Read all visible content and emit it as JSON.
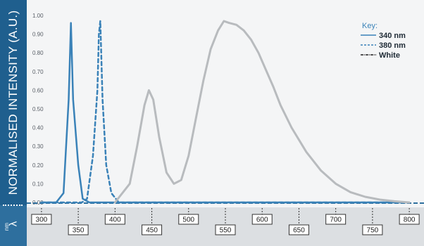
{
  "chart_data": {
    "type": "line",
    "ylabel": "NORMALISED INTENSITY (A.U.)",
    "xlabel": "λ",
    "xunit": "nm",
    "xlim": [
      280,
      820
    ],
    "ylim": [
      0,
      1.0
    ],
    "y_ticks": [
      "0.00",
      "0.10",
      "0.20",
      "0.30",
      "0.40",
      "0.50",
      "0.60",
      "0.70",
      "0.80",
      "0.90",
      "1.00"
    ],
    "x_ticks": [
      "300",
      "350",
      "400",
      "450",
      "500",
      "550",
      "600",
      "650",
      "700",
      "750",
      "800"
    ],
    "legend": {
      "title": "Key:",
      "placement": "top-right",
      "entries": [
        "340 nm",
        "380 nm",
        "White"
      ]
    },
    "series": [
      {
        "name": "340 nm",
        "style": "solid",
        "color": "#3a82b8",
        "x": [
          300,
          320,
          330,
          337,
          340,
          343,
          350,
          356,
          365,
          380,
          500,
          800
        ],
        "y": [
          0,
          0,
          0.05,
          0.55,
          0.96,
          0.55,
          0.2,
          0.02,
          0,
          0,
          0,
          0
        ]
      },
      {
        "name": "380 nm",
        "style": "dashed",
        "color": "#3a82b8",
        "x": [
          300,
          355,
          362,
          370,
          376,
          378,
          380,
          383,
          388,
          395,
          405,
          420,
          800
        ],
        "y": [
          0,
          0,
          0.02,
          0.25,
          0.6,
          0.9,
          0.97,
          0.55,
          0.2,
          0.05,
          0,
          0,
          0
        ]
      },
      {
        "name": "White",
        "style": "solid",
        "color": "#b8bbbe",
        "x": [
          400,
          420,
          430,
          440,
          446,
          452,
          460,
          470,
          480,
          490,
          500,
          510,
          520,
          530,
          540,
          548,
          555,
          565,
          575,
          585,
          595,
          605,
          615,
          625,
          640,
          660,
          680,
          700,
          720,
          740,
          760,
          780,
          800
        ],
        "y": [
          0,
          0.1,
          0.3,
          0.52,
          0.6,
          0.55,
          0.35,
          0.16,
          0.1,
          0.12,
          0.25,
          0.45,
          0.65,
          0.82,
          0.92,
          0.97,
          0.96,
          0.95,
          0.92,
          0.87,
          0.8,
          0.71,
          0.62,
          0.52,
          0.4,
          0.27,
          0.17,
          0.1,
          0.055,
          0.03,
          0.015,
          0.006,
          0
        ]
      }
    ]
  }
}
